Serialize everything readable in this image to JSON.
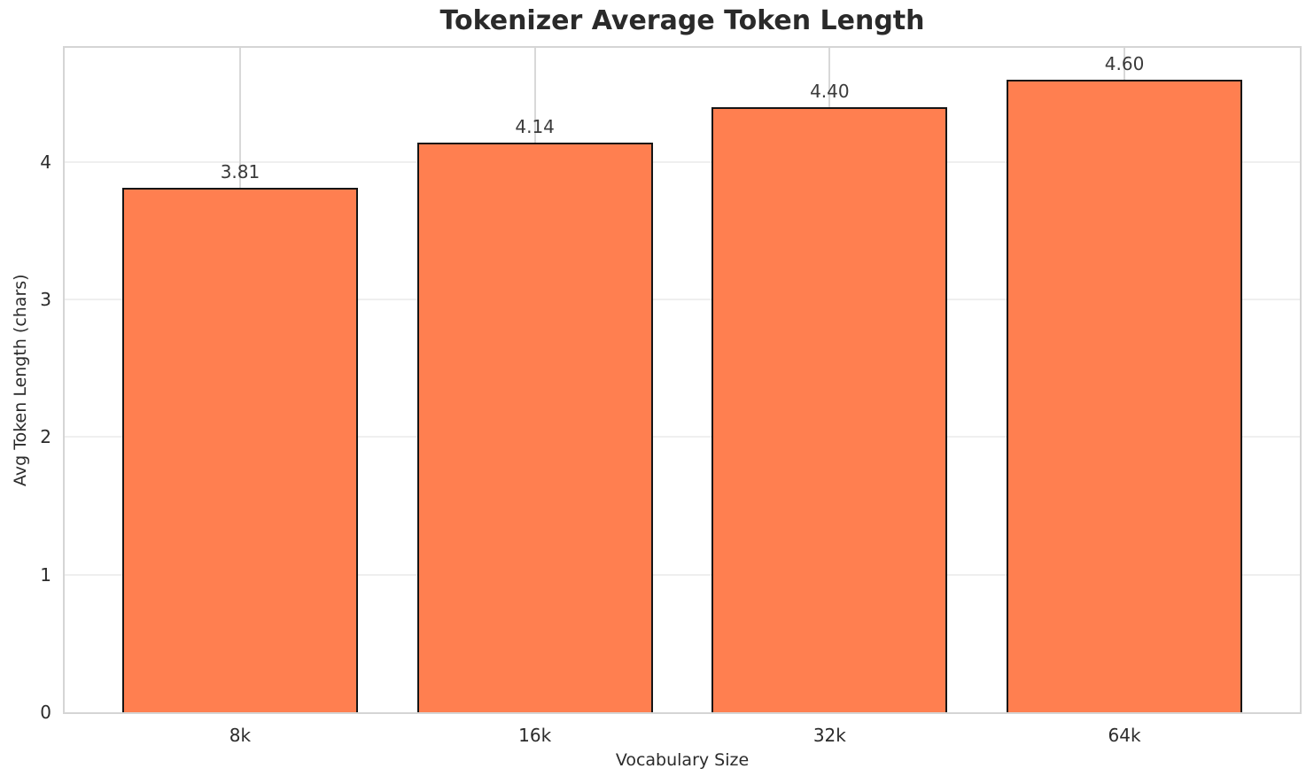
{
  "chart_data": {
    "type": "bar",
    "title": "Tokenizer Average Token Length",
    "xlabel": "Vocabulary Size",
    "ylabel": "Avg Token Length (chars)",
    "categories": [
      "8k",
      "16k",
      "32k",
      "64k"
    ],
    "values": [
      3.81,
      4.14,
      4.4,
      4.6
    ],
    "value_labels": [
      "3.81",
      "4.14",
      "4.40",
      "4.60"
    ],
    "ytick_labels": [
      "0",
      "1",
      "2",
      "3",
      "4"
    ],
    "yticks": [
      0,
      1,
      2,
      3,
      4
    ],
    "ylim": [
      0,
      4.83
    ],
    "bar_width": 0.8,
    "x_edge_margin": 0.595,
    "grid": true,
    "legend_position": "none",
    "colors": {
      "bar_fill": "#FF7F50",
      "bar_edge": "#151515",
      "grid_vertical": "#d8d8d8",
      "grid_horizontal": "#efefef",
      "spine": "#d5d5d5",
      "title_text": "#2a2a2a",
      "value_text": "#3a3a3a",
      "tick_text": "#2b2b2b",
      "background": "#ffffff"
    }
  }
}
